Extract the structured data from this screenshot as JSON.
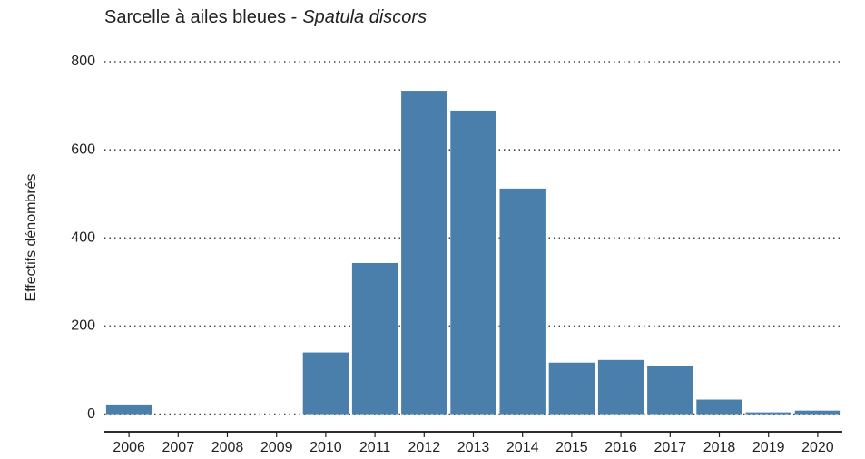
{
  "chart_data": {
    "type": "bar",
    "title": "Sarcelle à ailes bleues -",
    "species": "Spatula discors",
    "ylabel": "Effectifs dénombrés",
    "categories": [
      "2006",
      "2007",
      "2008",
      "2009",
      "2010",
      "2011",
      "2012",
      "2013",
      "2014",
      "2015",
      "2016",
      "2017",
      "2018",
      "2019",
      "2020"
    ],
    "values": [
      22,
      0,
      0,
      0,
      140,
      343,
      734,
      689,
      512,
      117,
      123,
      109,
      33,
      4,
      8
    ],
    "color": "#4a7fab",
    "ylim": [
      -40,
      800
    ],
    "yticks": [
      0,
      200,
      400,
      600,
      800
    ],
    "grid": true
  }
}
